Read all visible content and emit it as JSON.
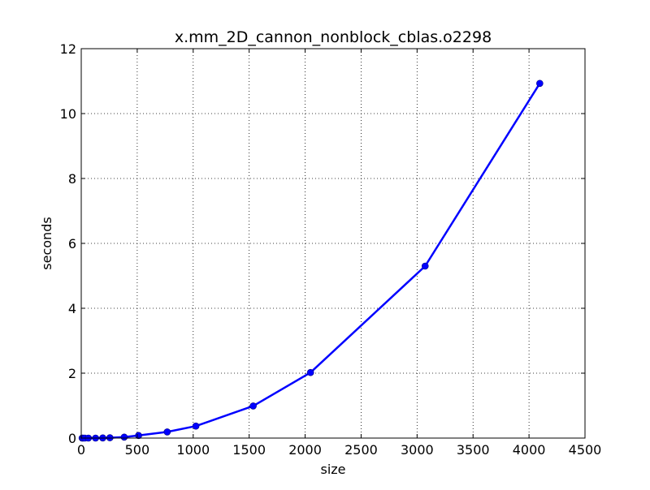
{
  "chart_data": {
    "type": "line",
    "title": "x.mm_2D_cannon_nonblock_cblas.o2298",
    "xlabel": "size",
    "ylabel": "seconds",
    "xlim": [
      0,
      4500
    ],
    "ylim": [
      0,
      12
    ],
    "xticks": [
      0,
      500,
      1000,
      1500,
      2000,
      2500,
      3000,
      3500,
      4000,
      4500
    ],
    "yticks": [
      0,
      2,
      4,
      6,
      8,
      10,
      12
    ],
    "grid": true,
    "legend": "none",
    "series": [
      {
        "color": "#0000ff",
        "marker": "circle",
        "x": [
          8,
          16,
          32,
          64,
          128,
          192,
          256,
          384,
          512,
          768,
          1024,
          1536,
          2048,
          3072,
          4096
        ],
        "y": [
          0.0,
          0.0,
          0.0,
          0.0,
          0.0,
          0.005,
          0.01,
          0.03,
          0.08,
          0.19,
          0.37,
          0.99,
          2.02,
          5.3,
          10.93
        ]
      }
    ]
  }
}
